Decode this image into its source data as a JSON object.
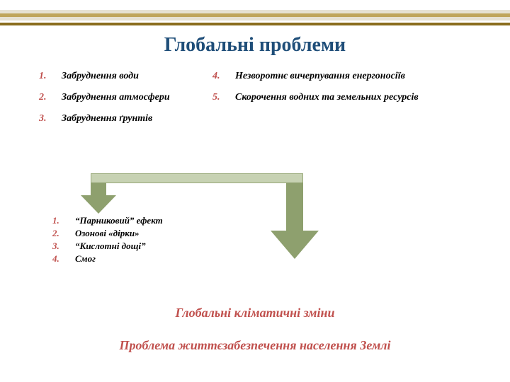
{
  "title": "Глобальні проблеми",
  "decor": {
    "band_colors": [
      "#e6e1d2",
      "#bfa55a",
      "#e6e1d2",
      "#8a6d1e"
    ]
  },
  "problems_left": [
    {
      "num": "1.",
      "text": "Забруднення води"
    },
    {
      "num": "2.",
      "text": "Забруднення атмосфери"
    },
    {
      "num": "3.",
      "text": "Забруднення ґрунтів"
    }
  ],
  "problems_right": [
    {
      "num": "4.",
      "text": "Незворотнє вичерпування енергоносіїв"
    },
    {
      "num": "5.",
      "text": "Скорочення водних та земельних ресурсів"
    }
  ],
  "connector": {
    "bar_color": "#c7d2b3",
    "bar_border": "#99a97a",
    "arrow_color": "#8ea06e"
  },
  "sublist": [
    {
      "num": "1.",
      "text": "“Парниковий” ефект"
    },
    {
      "num": "2.",
      "text": "Озонові «дірки»"
    },
    {
      "num": "3.",
      "text": "“Кислотні дощі”"
    },
    {
      "num": "4.",
      "text": "Смог"
    }
  ],
  "subtitle1": "Глобальні кліматичні зміни",
  "subtitle2": "Проблема життєзабезпечення населення Землі",
  "styles": {
    "title_color": "#1f4e79",
    "title_fontsize": 28,
    "accent_color": "#c0504d",
    "body_font": "Georgia",
    "item_fontsize": 14,
    "sub_fontsize": 13,
    "subtitle_fontsize": 18
  }
}
